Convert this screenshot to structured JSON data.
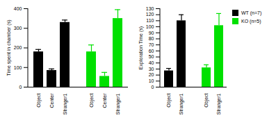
{
  "chart_data": [
    {
      "type": "bar",
      "ylabel": "Time spent in chamber (s)",
      "categories": [
        "Object",
        "Center",
        "Stranger1",
        "Object",
        "Center",
        "Stranger1"
      ],
      "values": [
        180,
        85,
        330,
        180,
        55,
        350
      ],
      "errors": [
        12,
        8,
        12,
        35,
        20,
        45
      ],
      "colors": [
        "#000000",
        "#000000",
        "#000000",
        "#00e000",
        "#00e000",
        "#00e000"
      ],
      "ylim": [
        0,
        400
      ],
      "yticks": [
        0,
        100,
        200,
        300,
        400
      ]
    },
    {
      "type": "bar",
      "ylabel": "Exploration Time (s)",
      "series": [
        {
          "name": "WT (n=7)",
          "color": "#000000",
          "categories": [
            "Object",
            "Stranger1"
          ],
          "values": [
            27,
            110
          ],
          "errors": [
            4,
            10
          ]
        },
        {
          "name": "KO (n=5)",
          "color": "#00e000",
          "categories": [
            "Object",
            "Stranger1"
          ],
          "values": [
            32,
            102
          ],
          "errors": [
            5,
            20
          ]
        }
      ],
      "ylim": [
        0,
        130
      ],
      "yticks": [
        0,
        10,
        20,
        30,
        40,
        50,
        60,
        70,
        80,
        90,
        100,
        110,
        120,
        130
      ],
      "legend": "right"
    }
  ]
}
